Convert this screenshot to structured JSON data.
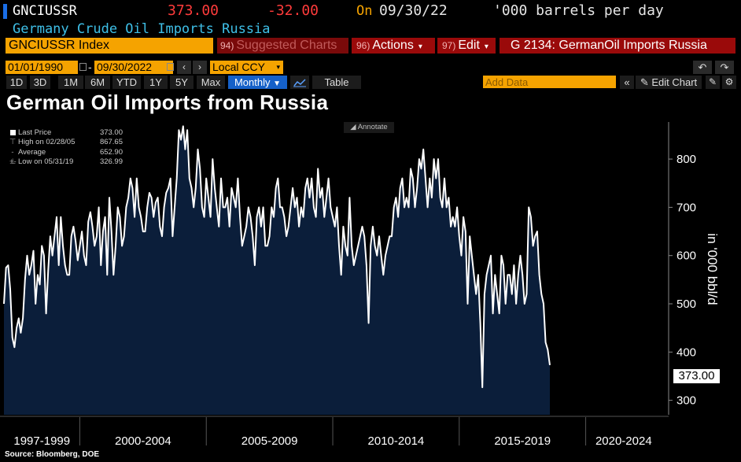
{
  "header": {
    "ticker": "GNCIUSSR",
    "last_price": "373.00",
    "net_change": "-32.00",
    "on_label": "On",
    "as_of_date": "09/30/22",
    "units": "'000 barrels per day",
    "description": "Germany Crude Oil Imports Russia"
  },
  "toolbar": {
    "security": "GNCIUSSR Index",
    "suggested_key": "94)",
    "suggested_label": "Suggested Charts",
    "actions_key": "96)",
    "actions_label": "Actions",
    "edit_key": "97)",
    "edit_label": "Edit",
    "chart_id": "G 2134: GermanOil Imports Russia",
    "start_date": "01/01/1990",
    "date_separator": "-",
    "end_date": "09/30/2022",
    "currency": "Local CCY",
    "periods": [
      "1D",
      "3D",
      "1M",
      "6M",
      "YTD",
      "1Y",
      "5Y",
      "Max"
    ],
    "frequency": "Monthly",
    "table_label": "Table",
    "add_data_placeholder": "Add Data",
    "edit_chart_label": "Edit Chart",
    "annotate_label": "Annotate"
  },
  "legend": {
    "rows": [
      {
        "label": "Last Price",
        "value": "373.00"
      },
      {
        "label": "High on 02/28/05",
        "value": "867.65"
      },
      {
        "label": "Average",
        "value": "652.90"
      },
      {
        "label": "Low on 05/31/19",
        "value": "326.99"
      }
    ]
  },
  "footer": {
    "source": "Source: Bloomberg, DOE"
  },
  "colors": {
    "area_fill": "#0b1e3a",
    "line": "#ffffff",
    "accent_orange": "#f5a300",
    "negative_red": "#ff3b3b",
    "description_cyan": "#3fc0e8",
    "button_red": "#9a0a0a"
  },
  "chart_data": {
    "type": "area",
    "title": "German Oil Imports from Russia",
    "ylabel": "in '000 bbl/d",
    "ylim": [
      270,
      885
    ],
    "y_ticks": [
      300,
      400,
      500,
      600,
      700,
      800
    ],
    "y_axis_side": "right",
    "grid": false,
    "x_range": [
      1997.0,
      2022.75
    ],
    "x_period_labels": [
      {
        "label": "1997-1999",
        "center": 1998.5
      },
      {
        "label": "2000-2004",
        "center": 2002.5
      },
      {
        "label": "2005-2009",
        "center": 2007.5
      },
      {
        "label": "2010-2014",
        "center": 2012.5
      },
      {
        "label": "2015-2019",
        "center": 2017.5
      },
      {
        "label": "2020-2024",
        "center": 2021.5
      }
    ],
    "x_period_dividers": [
      2000,
      2005,
      2010,
      2015,
      2020
    ],
    "series": [
      {
        "name": "Last Price",
        "start_year": 1997.0,
        "step_years": 0.08333,
        "values": [
          500,
          575,
          580,
          530,
          430,
          410,
          450,
          470,
          440,
          470,
          550,
          600,
          560,
          580,
          610,
          500,
          560,
          540,
          620,
          600,
          480,
          570,
          640,
          600,
          640,
          680,
          580,
          680,
          620,
          580,
          560,
          560,
          640,
          660,
          630,
          590,
          620,
          650,
          600,
          580,
          670,
          690,
          660,
          620,
          640,
          700,
          580,
          650,
          680,
          560,
          720,
          650,
          560,
          620,
          700,
          680,
          620,
          640,
          700,
          720,
          760,
          740,
          680,
          760,
          700,
          680,
          650,
          650,
          700,
          730,
          720,
          680,
          710,
          720,
          660,
          640,
          700,
          730,
          740,
          760,
          640,
          700,
          760,
          860,
          840,
          868,
          820,
          860,
          760,
          740,
          700,
          740,
          820,
          780,
          700,
          680,
          760,
          720,
          680,
          800,
          740,
          700,
          660,
          760,
          700,
          700,
          720,
          660,
          740,
          720,
          700,
          760,
          680,
          620,
          640,
          660,
          700,
          680,
          640,
          580,
          680,
          700,
          660,
          700,
          620,
          620,
          640,
          700,
          680,
          740,
          760,
          700,
          700,
          680,
          640,
          660,
          700,
          740,
          700,
          720,
          660,
          700,
          680,
          740,
          760,
          720,
          760,
          700,
          680,
          780,
          720,
          740,
          680,
          720,
          760,
          700,
          680,
          660,
          700,
          620,
          560,
          660,
          620,
          600,
          720,
          620,
          580,
          600,
          620,
          640,
          660,
          640,
          580,
          460,
          620,
          660,
          620,
          600,
          640,
          600,
          560,
          600,
          620,
          640,
          640,
          700,
          720,
          680,
          740,
          760,
          700,
          720,
          700,
          780,
          760,
          700,
          740,
          800,
          780,
          820,
          760,
          700,
          760,
          720,
          800,
          760,
          800,
          720,
          700,
          760,
          700,
          720,
          660,
          680,
          660,
          700,
          640,
          600,
          680,
          650,
          500,
          640,
          600,
          560,
          520,
          560,
          460,
          327,
          520,
          560,
          580,
          600,
          480,
          560,
          520,
          480,
          600,
          580,
          500,
          560,
          560,
          520,
          580,
          500,
          560,
          600,
          560,
          500,
          520,
          700,
          680,
          620,
          640,
          650,
          560,
          520,
          500,
          420,
          405,
          373
        ]
      }
    ]
  }
}
